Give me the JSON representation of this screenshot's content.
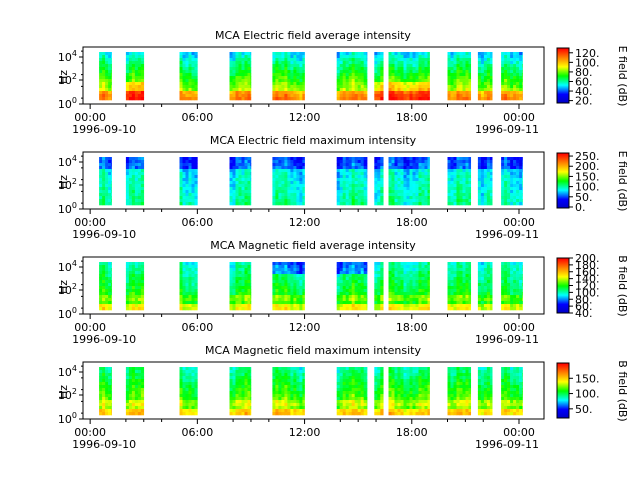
{
  "chart_data": [
    {
      "type": "heatmap",
      "title": "MCA  Electric field average intensity",
      "ylabel": "Hz",
      "y_scale": "log",
      "y_tick_labels": [
        "10^0",
        "10^2",
        "10^4"
      ],
      "x_tick_labels": [
        "00:00",
        "06:00",
        "12:00",
        "18:00",
        "00:00"
      ],
      "x_date_labels": {
        "start": "1996-09-10",
        "end": "1996-09-11"
      },
      "colorbar": {
        "label": "E field (dB)",
        "ticks": [
          "20.",
          "40.",
          "60.",
          "80.",
          "100.",
          "120."
        ],
        "range": [
          15,
          130
        ]
      }
    },
    {
      "type": "heatmap",
      "title": "MCA  Electric field maximum intensity",
      "ylabel": "Hz",
      "y_scale": "log",
      "y_tick_labels": [
        "10^0",
        "10^2",
        "10^4"
      ],
      "x_tick_labels": [
        "00:00",
        "06:00",
        "12:00",
        "18:00",
        "00:00"
      ],
      "x_date_labels": {
        "start": "1996-09-10",
        "end": "1996-09-11"
      },
      "colorbar": {
        "label": "E field (dB)",
        "ticks": [
          "0.",
          "50.",
          "100.",
          "150.",
          "200.",
          "250."
        ],
        "range": [
          -5,
          265
        ]
      }
    },
    {
      "type": "heatmap",
      "title": "MCA  Magnetic field average intensity",
      "ylabel": "Hz",
      "y_scale": "log",
      "y_tick_labels": [
        "10^0",
        "10^2",
        "10^4"
      ],
      "x_tick_labels": [
        "00:00",
        "06:00",
        "12:00",
        "18:00",
        "00:00"
      ],
      "x_date_labels": {
        "start": "1996-09-10",
        "end": "1996-09-11"
      },
      "colorbar": {
        "label": "B field (dB)",
        "ticks": [
          "40.",
          "60.",
          "80.",
          "100.",
          "120.",
          "140.",
          "160.",
          "180.",
          "200."
        ],
        "range": [
          40,
          200
        ]
      }
    },
    {
      "type": "heatmap",
      "title": "MCA  Magnetic field maximum intensity",
      "ylabel": "Hz",
      "y_scale": "log",
      "y_tick_labels": [
        "10^0",
        "10^2",
        "10^4"
      ],
      "x_tick_labels": [
        "00:00",
        "06:00",
        "12:00",
        "18:00",
        "00:00"
      ],
      "x_date_labels": {
        "start": "1996-09-10",
        "end": "1996-09-11"
      },
      "colorbar": {
        "label": "B field (dB)",
        "ticks": [
          "50.",
          "100.",
          "150."
        ],
        "range": [
          20,
          200
        ]
      }
    }
  ],
  "data_blocks_hours": [
    [
      0.5,
      1.2
    ],
    [
      2.0,
      3.0
    ],
    [
      5.0,
      6.0
    ],
    [
      7.8,
      9.0
    ],
    [
      10.2,
      12.0
    ],
    [
      13.8,
      15.5
    ],
    [
      15.9,
      16.4
    ],
    [
      16.7,
      19.0
    ],
    [
      20.0,
      21.3
    ],
    [
      21.7,
      22.5
    ],
    [
      23.0,
      24.2
    ]
  ],
  "colormap_stops": [
    "#0000c0",
    "#0000ff",
    "#00ffff",
    "#00ff00",
    "#ffff00",
    "#ff8000",
    "#ff0000"
  ]
}
